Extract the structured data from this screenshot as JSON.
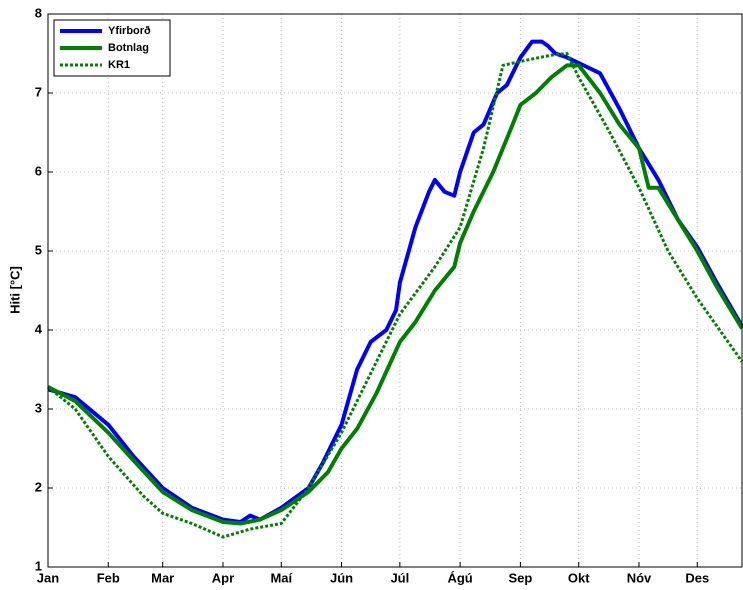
{
  "chart_data": {
    "type": "line",
    "ylabel": "Hiti [°C]",
    "xlim": [
      1,
      358
    ],
    "ylim": [
      1,
      8
    ],
    "xticks": [
      {
        "value": 1,
        "label": "Jan"
      },
      {
        "value": 32,
        "label": "Feb"
      },
      {
        "value": 60,
        "label": "Mar"
      },
      {
        "value": 91,
        "label": "Apr"
      },
      {
        "value": 121,
        "label": "Maí"
      },
      {
        "value": 152,
        "label": "Jún"
      },
      {
        "value": 182,
        "label": "Júl"
      },
      {
        "value": 213,
        "label": "Ágú"
      },
      {
        "value": 244,
        "label": "Sep"
      },
      {
        "value": 274,
        "label": "Okt"
      },
      {
        "value": 305,
        "label": "Nóv"
      },
      {
        "value": 335,
        "label": "Des"
      }
    ],
    "yticks": [
      1,
      2,
      3,
      4,
      5,
      6,
      7,
      8
    ],
    "grid": true,
    "legend": "upper-left",
    "series": [
      {
        "name": "Yfirborð",
        "color": "#0000ff",
        "style": "solid",
        "x": [
          1,
          15,
          32,
          45,
          60,
          75,
          91,
          100,
          105,
          110,
          121,
          135,
          142,
          152,
          160,
          167,
          175,
          180,
          182,
          190,
          197,
          200,
          205,
          210,
          213,
          220,
          225,
          232,
          237,
          244,
          250,
          255,
          258,
          262,
          268,
          274,
          285,
          295,
          305,
          315,
          325,
          335,
          345,
          358
        ],
        "values": [
          3.25,
          3.15,
          2.8,
          2.4,
          2.0,
          1.75,
          1.6,
          1.57,
          1.65,
          1.6,
          1.75,
          2.0,
          2.3,
          2.8,
          3.5,
          3.85,
          4.0,
          4.25,
          4.6,
          5.3,
          5.75,
          5.9,
          5.75,
          5.7,
          6.0,
          6.5,
          6.6,
          7.0,
          7.1,
          7.45,
          7.65,
          7.65,
          7.6,
          7.5,
          7.45,
          7.38,
          7.25,
          6.8,
          6.3,
          5.9,
          5.4,
          5.05,
          4.6,
          4.05
        ]
      },
      {
        "name": "Botnlag",
        "color": "#008000",
        "style": "solid",
        "x": [
          1,
          15,
          32,
          45,
          60,
          75,
          91,
          100,
          110,
          121,
          135,
          145,
          152,
          160,
          170,
          182,
          190,
          200,
          210,
          213,
          220,
          230,
          240,
          244,
          252,
          260,
          268,
          274,
          285,
          295,
          305,
          310,
          315,
          325,
          335,
          345,
          358
        ],
        "values": [
          3.28,
          3.1,
          2.7,
          2.35,
          1.95,
          1.72,
          1.57,
          1.55,
          1.6,
          1.72,
          1.95,
          2.2,
          2.5,
          2.75,
          3.2,
          3.85,
          4.1,
          4.5,
          4.8,
          5.1,
          5.5,
          6.0,
          6.6,
          6.85,
          7.0,
          7.2,
          7.35,
          7.35,
          7.0,
          6.6,
          6.3,
          5.8,
          5.8,
          5.4,
          5.0,
          4.55,
          4.02
        ]
      },
      {
        "name": "KR1",
        "color": "#008000",
        "style": "dotted",
        "x": [
          1,
          15,
          32,
          50,
          60,
          75,
          91,
          105,
          121,
          135,
          152,
          170,
          182,
          200,
          213,
          225,
          235,
          244,
          260,
          268,
          274,
          290,
          305,
          320,
          335,
          358
        ],
        "values": [
          3.28,
          3.0,
          2.4,
          1.9,
          1.68,
          1.55,
          1.38,
          1.48,
          1.55,
          2.0,
          2.7,
          3.6,
          4.2,
          4.8,
          5.3,
          6.3,
          7.35,
          7.4,
          7.48,
          7.5,
          7.2,
          6.5,
          5.8,
          5.0,
          4.4,
          3.6
        ]
      }
    ]
  }
}
